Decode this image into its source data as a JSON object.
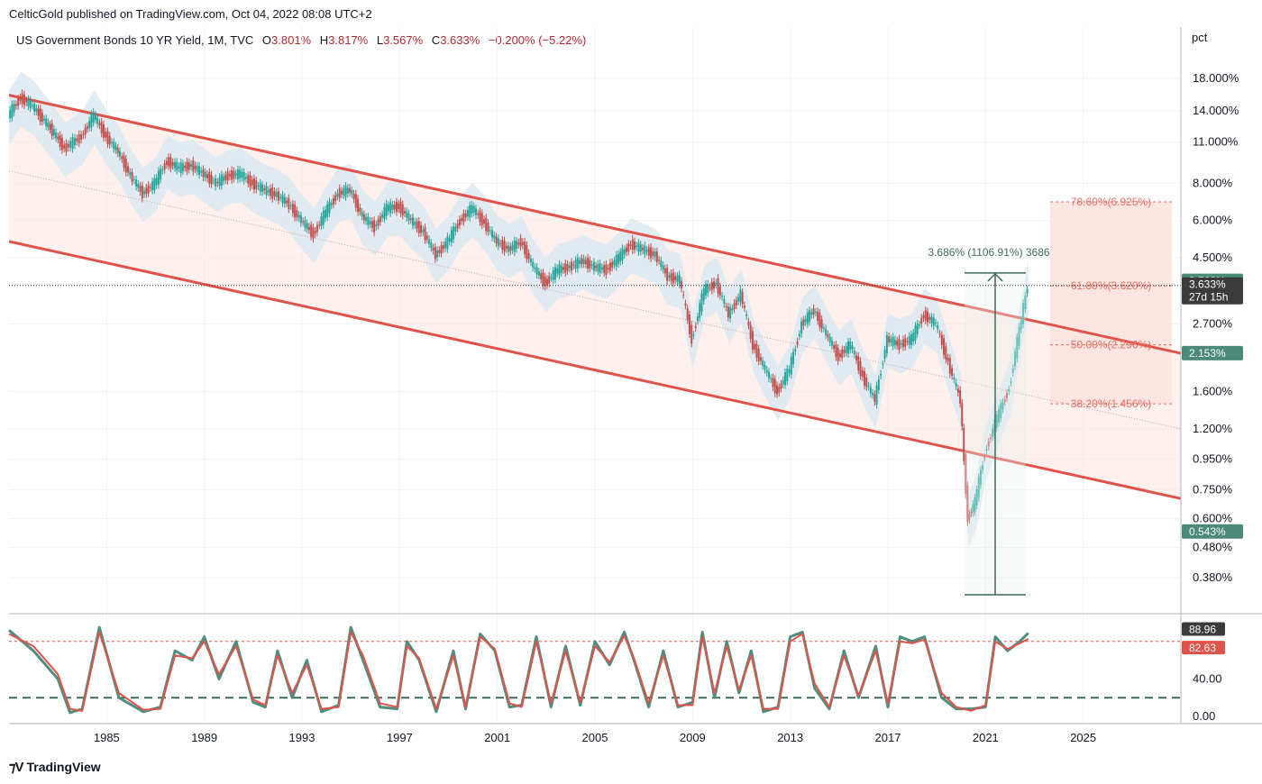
{
  "header": {
    "publish_line": "CelticGold published on TradingView.com, Oct 04, 2022 08:08 UTC+2"
  },
  "legend": {
    "symbol": "US Government Bonds 10 YR Yield, 1M, TVC",
    "o_label": "O",
    "o_value": "3.801%",
    "h_label": "H",
    "h_value": "3.817%",
    "l_label": "L",
    "l_value": "3.567%",
    "c_label": "C",
    "c_value": "3.633%",
    "change": "−0.200% (−5.22%)"
  },
  "colors": {
    "channel_line": "#e0534a",
    "channel_fill": "#fde3df",
    "cloud": "#dde9f1",
    "candle_up": "#26a69a",
    "candle_down": "#c0504d",
    "fib": "#e86c62",
    "measure": "#3d6b57",
    "stoch_k": "#4f8d7d",
    "stoch_d": "#e0534a",
    "price_tag": "#3b3b3b",
    "tag_green": "#4b8a78"
  },
  "footer": {
    "brand": "TradingView"
  },
  "chart_data": [
    {
      "type": "line",
      "title": "US Government Bonds 10 YR Yield, 1M, TVC",
      "y_scale": "log",
      "y_unit": "pct",
      "ylim": [
        0.3,
        22
      ],
      "xlim": [
        1981.0,
        2029.0
      ],
      "x_ticks": [
        "1985",
        "1989",
        "1993",
        "1997",
        "2001",
        "2005",
        "2009",
        "2013",
        "2017",
        "2021",
        "2025"
      ],
      "y_ticks": [
        "18.000%",
        "14.000%",
        "11.000%",
        "8.000%",
        "6.000%",
        "4.500%",
        "2.700%",
        "1.600%",
        "1.200%",
        "0.950%",
        "0.750%",
        "0.600%",
        "0.480%",
        "0.380%"
      ],
      "series": [
        {
          "x": [
            1981.0,
            1981.5,
            1982.0,
            1982.8,
            1983.3,
            1984.0,
            1984.5,
            1985.0,
            1985.5,
            1986.0,
            1986.5,
            1987.0,
            1987.5,
            1988.0,
            1988.5,
            1989.0,
            1989.5,
            1990.0,
            1990.5,
            1991.0,
            1991.5,
            1992.0,
            1992.5,
            1993.0,
            1993.5,
            1994.0,
            1994.5,
            1995.0,
            1995.5,
            1996.0,
            1996.5,
            1997.0,
            1997.5,
            1998.0,
            1998.5,
            1999.0,
            1999.5,
            2000.0,
            2000.5,
            2001.0,
            2001.5,
            2002.0,
            2002.5,
            2003.0,
            2003.5,
            2004.0,
            2004.5,
            2005.0,
            2005.5,
            2006.0,
            2006.5,
            2007.0,
            2007.5,
            2008.0,
            2008.5,
            2009.0,
            2009.5,
            2010.0,
            2010.5,
            2011.0,
            2011.5,
            2012.0,
            2012.5,
            2013.0,
            2013.5,
            2014.0,
            2014.5,
            2015.0,
            2015.5,
            2016.0,
            2016.5,
            2017.0,
            2017.5,
            2018.0,
            2018.5,
            2019.0,
            2019.5,
            2020.0,
            2020.3,
            2020.6,
            2021.0,
            2021.5,
            2022.0,
            2022.5,
            2022.75
          ],
          "values": [
            13.5,
            15.5,
            14.5,
            12.0,
            10.5,
            11.5,
            13.5,
            11.5,
            10.2,
            8.5,
            7.4,
            8.0,
            9.5,
            9.0,
            9.2,
            8.6,
            8.0,
            8.5,
            8.6,
            8.0,
            7.6,
            7.3,
            6.8,
            6.0,
            5.4,
            6.4,
            7.4,
            7.6,
            6.2,
            5.7,
            6.6,
            6.7,
            6.0,
            5.5,
            4.6,
            5.1,
            6.0,
            6.6,
            5.9,
            5.1,
            4.8,
            5.1,
            4.2,
            3.7,
            4.1,
            4.2,
            4.4,
            4.2,
            4.1,
            4.5,
            5.0,
            4.8,
            4.6,
            3.9,
            3.8,
            2.4,
            3.5,
            3.7,
            2.9,
            3.4,
            2.3,
            1.9,
            1.6,
            1.9,
            2.7,
            3.0,
            2.5,
            2.1,
            2.3,
            1.8,
            1.5,
            2.4,
            2.3,
            2.4,
            2.9,
            2.7,
            2.0,
            1.5,
            0.6,
            0.68,
            1.0,
            1.3,
            1.65,
            2.8,
            3.63
          ],
          "name": ""
        }
      ],
      "channel": {
        "upper": [
          [
            1981.0,
            15.8
          ],
          [
            2029.0,
            2.15
          ]
        ],
        "middle": [
          [
            1981.0,
            8.8
          ],
          [
            2029.0,
            1.2
          ]
        ],
        "lower": [
          [
            1981.0,
            5.1
          ],
          [
            2029.0,
            0.7
          ]
        ]
      },
      "fib_levels": [
        {
          "label": "78.60%(6.925%)",
          "value": 6.925
        },
        {
          "label": "61.80%(3.620%)",
          "value": 3.62
        },
        {
          "label": "50.00%(2.296%)",
          "value": 2.296
        },
        {
          "label": "38.20%(1.456%)",
          "value": 1.456
        }
      ],
      "measure": {
        "label": "3.686% (1106.91%) 3686",
        "from": 0.333,
        "to": 4.0
      },
      "price_tags": [
        {
          "label": "3.763%",
          "value": 3.763,
          "style": "green"
        },
        {
          "label": "3.633%",
          "sub": "27d 15h",
          "value": 3.633,
          "style": "dark"
        },
        {
          "label": "2.153%",
          "value": 2.153,
          "style": "green"
        },
        {
          "label": "0.543%",
          "value": 0.543,
          "style": "green"
        }
      ],
      "axis_unit_label": "pct"
    },
    {
      "type": "line",
      "title": "",
      "ylim": [
        0,
        100
      ],
      "y_ticks": [
        "40.00",
        "0.00"
      ],
      "levels": [
        80,
        20
      ],
      "series": [
        {
          "name": "",
          "x": [
            1981.0,
            1982.0,
            1983.0,
            1983.5,
            1984.0,
            1984.7,
            1985.5,
            1986.5,
            1987.2,
            1987.8,
            1988.5,
            1989.0,
            1989.6,
            1990.3,
            1991.0,
            1991.5,
            1992.0,
            1992.6,
            1993.2,
            1993.8,
            1994.5,
            1995.0,
            1995.5,
            1996.2,
            1996.9,
            1997.3,
            1997.8,
            1998.5,
            1999.2,
            1999.7,
            2000.3,
            2000.9,
            2001.5,
            2002.0,
            2002.6,
            2003.2,
            2003.8,
            2004.4,
            2005.0,
            2005.6,
            2006.2,
            2006.6,
            2007.2,
            2007.8,
            2008.4,
            2009.0,
            2009.4,
            2009.9,
            2010.4,
            2010.9,
            2011.4,
            2011.9,
            2012.5,
            2013.0,
            2013.5,
            2014.0,
            2014.6,
            2015.2,
            2015.8,
            2016.5,
            2017.0,
            2017.5,
            2018.0,
            2018.5,
            2019.2,
            2019.8,
            2020.4,
            2021.0,
            2021.4,
            2021.9,
            2022.4,
            2022.75
          ],
          "values": [
            92,
            70,
            40,
            4,
            8,
            95,
            20,
            5,
            10,
            70,
            60,
            85,
            40,
            80,
            15,
            10,
            70,
            20,
            60,
            5,
            12,
            95,
            60,
            10,
            8,
            80,
            60,
            5,
            70,
            8,
            88,
            70,
            10,
            12,
            85,
            10,
            75,
            12,
            80,
            55,
            90,
            60,
            10,
            70,
            10,
            15,
            90,
            20,
            80,
            25,
            70,
            5,
            10,
            85,
            90,
            30,
            8,
            70,
            20,
            75,
            10,
            85,
            80,
            85,
            20,
            8,
            8,
            10,
            85,
            70,
            80,
            88.96
          ]
        },
        {
          "name": "",
          "x": [
            1981.0,
            1982.0,
            1983.0,
            1983.5,
            1984.0,
            1984.7,
            1985.5,
            1986.5,
            1987.2,
            1987.8,
            1988.5,
            1989.0,
            1989.6,
            1990.3,
            1991.0,
            1991.5,
            1992.0,
            1992.6,
            1993.2,
            1993.8,
            1994.5,
            1995.0,
            1995.5,
            1996.2,
            1996.9,
            1997.3,
            1997.8,
            1998.5,
            1999.2,
            1999.7,
            2000.3,
            2000.9,
            2001.5,
            2002.0,
            2002.6,
            2003.2,
            2003.8,
            2004.4,
            2005.0,
            2005.6,
            2006.2,
            2006.6,
            2007.2,
            2007.8,
            2008.4,
            2009.0,
            2009.4,
            2009.9,
            2010.4,
            2010.9,
            2011.4,
            2011.9,
            2012.5,
            2013.0,
            2013.5,
            2014.0,
            2014.6,
            2015.2,
            2015.8,
            2016.5,
            2017.0,
            2017.5,
            2018.0,
            2018.5,
            2019.2,
            2019.8,
            2020.4,
            2021.0,
            2021.4,
            2021.9,
            2022.4,
            2022.75
          ],
          "values": [
            88,
            75,
            45,
            8,
            6,
            90,
            25,
            7,
            8,
            65,
            62,
            80,
            45,
            75,
            18,
            12,
            65,
            25,
            55,
            8,
            10,
            90,
            65,
            14,
            10,
            75,
            62,
            8,
            65,
            10,
            85,
            72,
            14,
            10,
            80,
            14,
            70,
            15,
            75,
            58,
            86,
            62,
            14,
            65,
            12,
            12,
            85,
            25,
            75,
            28,
            65,
            8,
            8,
            80,
            88,
            35,
            10,
            65,
            22,
            70,
            14,
            80,
            78,
            82,
            25,
            10,
            6,
            12,
            80,
            72,
            78,
            82.63
          ]
        }
      ],
      "value_tags": [
        {
          "label": "88.96",
          "value": 88.96,
          "style": "dark"
        },
        {
          "label": "82.63",
          "value": 82.63,
          "style": "red"
        }
      ]
    }
  ]
}
